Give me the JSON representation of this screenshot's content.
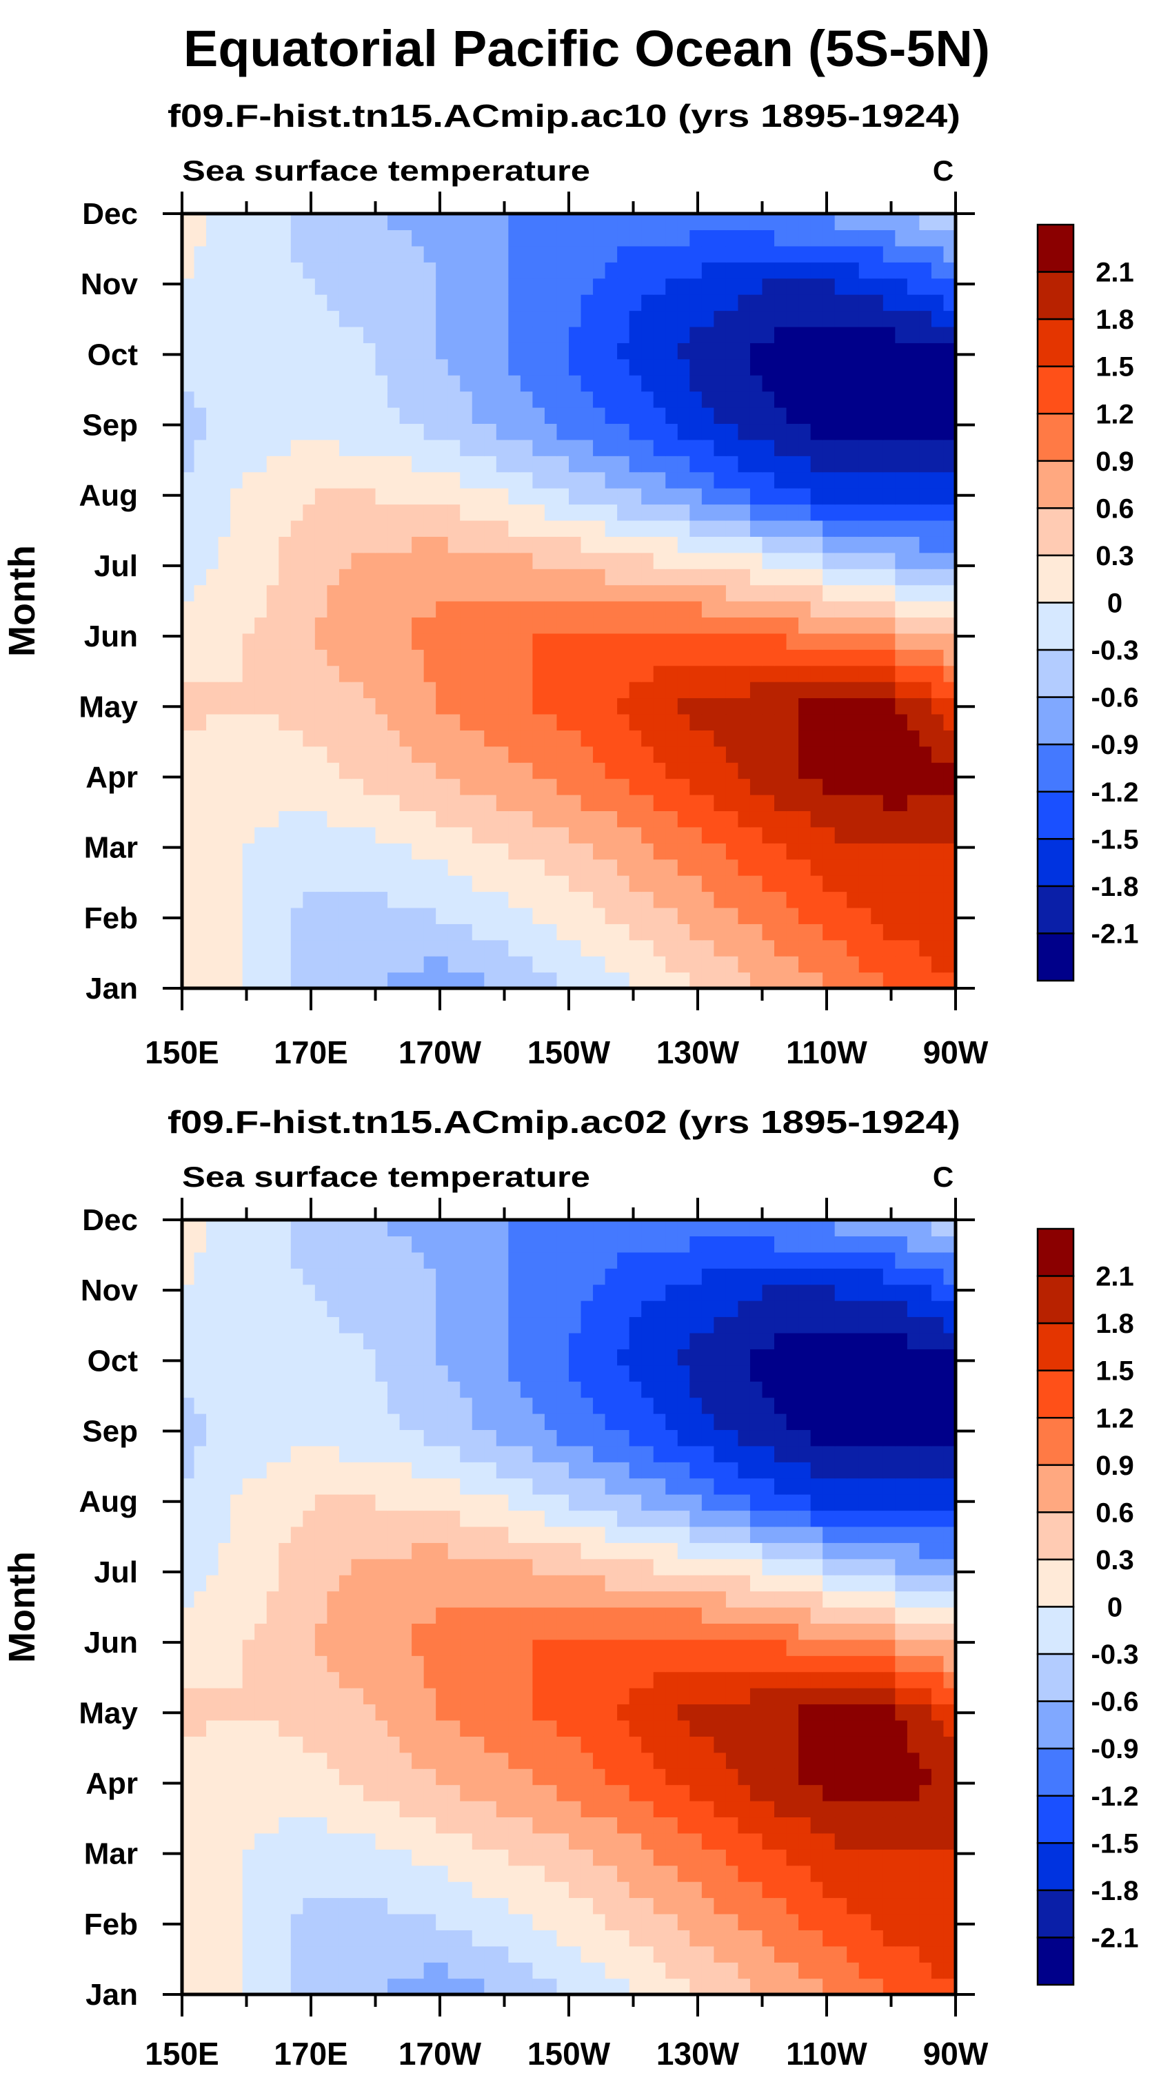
{
  "chart_data": {
    "type": "heatmap",
    "title": "Equatorial Pacific Ocean (5S-5N)",
    "ylabel": "Month",
    "units": "C",
    "variable": "Sea surface temperature",
    "y_ticks": [
      "Jan",
      "Feb",
      "Mar",
      "Apr",
      "May",
      "Jun",
      "Jul",
      "Aug",
      "Sep",
      "Oct",
      "Nov",
      "Dec"
    ],
    "x_ticks": [
      "150E",
      "170E",
      "170W",
      "150W",
      "130W",
      "110W",
      "90W"
    ],
    "x_grid_lon": [
      150,
      160,
      170,
      180,
      190,
      200,
      210,
      220,
      230,
      240,
      250,
      260,
      270
    ],
    "levels": [
      -2.1,
      -1.8,
      -1.5,
      -1.2,
      -0.9,
      -0.6,
      -0.3,
      0,
      0.3,
      0.6,
      0.9,
      1.2,
      1.5,
      1.8,
      2.1
    ],
    "level_labels": [
      "2.1",
      "1.8",
      "1.5",
      "1.2",
      "0.9",
      "0.6",
      "0.3",
      "0",
      "-0.3",
      "-0.6",
      "-0.9",
      "-1.2",
      "-1.5",
      "-1.8",
      "-2.1"
    ],
    "colors": [
      "#00008a",
      "#0a1fa8",
      "#0033e0",
      "#1a50ff",
      "#4479ff",
      "#80a8ff",
      "#b3ccff",
      "#d6e8ff",
      "#ffead8",
      "#ffcbb3",
      "#ffa880",
      "#ff7a45",
      "#ff5018",
      "#e43500",
      "#b82200",
      "#8b0000"
    ],
    "panels": [
      {
        "subtitle": "f09.F-hist.tn15.ACmip.ac10 (yrs 1895-1924)",
        "values": [
          [
            0.1,
            0.0,
            -0.5,
            -0.6,
            -0.8,
            -0.6,
            -0.3,
            0.0,
            0.3,
            0.6,
            0.9,
            1.2,
            1.5
          ],
          [
            0.1,
            0.0,
            -0.4,
            -0.4,
            -0.3,
            -0.1,
            0.1,
            0.4,
            0.7,
            1.0,
            1.3,
            1.6,
            1.7
          ],
          [
            0.1,
            0.0,
            -0.2,
            -0.1,
            0.1,
            0.3,
            0.5,
            0.8,
            1.1,
            1.4,
            1.7,
            1.8,
            1.8
          ],
          [
            0.1,
            0.1,
            0.2,
            0.4,
            0.6,
            0.8,
            1.0,
            1.3,
            1.6,
            1.9,
            2.2,
            2.3,
            2.2
          ],
          [
            0.4,
            0.3,
            0.4,
            0.6,
            0.9,
            1.1,
            1.3,
            1.6,
            1.9,
            2.0,
            2.2,
            2.2,
            1.6
          ],
          [
            0.1,
            0.3,
            0.6,
            0.8,
            1.0,
            1.2,
            1.2,
            1.3,
            1.3,
            1.2,
            1.0,
            0.8,
            0.5
          ],
          [
            -0.1,
            0.1,
            0.5,
            0.7,
            0.8,
            0.7,
            0.6,
            0.4,
            0.3,
            0.1,
            -0.2,
            -0.5,
            -0.8
          ],
          [
            -0.3,
            0.1,
            0.3,
            0.3,
            0.2,
            0.0,
            -0.3,
            -0.6,
            -0.9,
            -1.3,
            -1.6,
            -1.6,
            -1.5
          ],
          [
            -0.4,
            -0.2,
            -0.1,
            -0.2,
            -0.4,
            -0.7,
            -1.0,
            -1.3,
            -1.7,
            -2.0,
            -2.2,
            -2.2,
            -2.2
          ],
          [
            -0.2,
            -0.2,
            -0.2,
            -0.3,
            -0.6,
            -0.9,
            -1.2,
            -1.6,
            -1.9,
            -2.2,
            -2.3,
            -2.3,
            -2.2
          ],
          [
            0.0,
            -0.2,
            -0.3,
            -0.4,
            -0.6,
            -0.9,
            -1.1,
            -1.4,
            -1.6,
            -1.8,
            -1.8,
            -1.6,
            -1.2
          ],
          [
            0.1,
            -0.1,
            -0.4,
            -0.6,
            -0.7,
            -0.9,
            -1.0,
            -1.0,
            -1.0,
            -0.9,
            -0.8,
            -0.6,
            -0.3
          ]
        ]
      },
      {
        "subtitle": "f09.F-hist.tn15.ACmip.ac02 (yrs 1895-1924)",
        "values": [
          [
            0.1,
            0.0,
            -0.5,
            -0.6,
            -0.8,
            -0.6,
            -0.3,
            0.0,
            0.3,
            0.6,
            0.9,
            1.2,
            1.5
          ],
          [
            0.1,
            0.0,
            -0.4,
            -0.4,
            -0.3,
            -0.1,
            0.1,
            0.4,
            0.7,
            1.0,
            1.3,
            1.6,
            1.7
          ],
          [
            0.1,
            0.0,
            -0.2,
            -0.1,
            0.1,
            0.3,
            0.5,
            0.8,
            1.1,
            1.4,
            1.7,
            1.8,
            1.8
          ],
          [
            0.1,
            0.1,
            0.2,
            0.4,
            0.6,
            0.8,
            1.0,
            1.3,
            1.6,
            1.9,
            2.2,
            2.2,
            2.1
          ],
          [
            0.4,
            0.3,
            0.4,
            0.6,
            0.9,
            1.1,
            1.3,
            1.6,
            1.9,
            2.0,
            2.2,
            2.2,
            1.6
          ],
          [
            0.1,
            0.3,
            0.6,
            0.8,
            1.0,
            1.2,
            1.2,
            1.3,
            1.3,
            1.2,
            1.0,
            0.8,
            0.5
          ],
          [
            -0.1,
            0.1,
            0.5,
            0.7,
            0.8,
            0.7,
            0.6,
            0.4,
            0.3,
            0.1,
            -0.2,
            -0.5,
            -0.8
          ],
          [
            -0.3,
            0.1,
            0.3,
            0.3,
            0.2,
            0.0,
            -0.3,
            -0.6,
            -0.9,
            -1.3,
            -1.6,
            -1.6,
            -1.5
          ],
          [
            -0.4,
            -0.2,
            -0.1,
            -0.2,
            -0.4,
            -0.7,
            -1.0,
            -1.3,
            -1.7,
            -2.0,
            -2.2,
            -2.2,
            -2.2
          ],
          [
            -0.2,
            -0.2,
            -0.2,
            -0.3,
            -0.6,
            -0.9,
            -1.2,
            -1.6,
            -1.9,
            -2.2,
            -2.3,
            -2.3,
            -2.2
          ],
          [
            0.0,
            -0.2,
            -0.3,
            -0.4,
            -0.6,
            -0.9,
            -1.1,
            -1.4,
            -1.6,
            -1.8,
            -1.8,
            -1.7,
            -1.3
          ],
          [
            0.1,
            -0.1,
            -0.4,
            -0.6,
            -0.7,
            -0.9,
            -1.0,
            -1.0,
            -1.0,
            -0.9,
            -0.8,
            -0.6,
            -0.4
          ]
        ]
      }
    ]
  }
}
